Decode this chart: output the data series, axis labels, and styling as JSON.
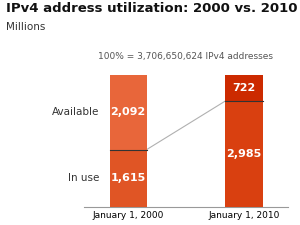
{
  "title": "IPv4 address utilization: 2000 vs. 2010",
  "subtitle": "Millions",
  "annotation": "100% = 3,706,650,624 IPv4 addresses",
  "categories": [
    "January 1, 2000",
    "January 1, 2010"
  ],
  "in_use": [
    1615,
    2985
  ],
  "available": [
    2092,
    722
  ],
  "color_inuse_2000": "#e05525",
  "color_available_2000": "#e8663a",
  "color_inuse_2010": "#d94010",
  "color_available_2010": "#cc2a00",
  "color_separator": "#333333",
  "color_connector": "#b0b0b0",
  "background_color": "#ffffff",
  "title_fontsize": 9.5,
  "subtitle_fontsize": 7.5,
  "annotation_fontsize": 6.5,
  "label_fontsize": 7.5,
  "bar_label_fontsize": 8,
  "bar_width": 0.32,
  "ylim": [
    0,
    3800
  ],
  "figsize": [
    3.0,
    2.25
  ],
  "dpi": 100
}
